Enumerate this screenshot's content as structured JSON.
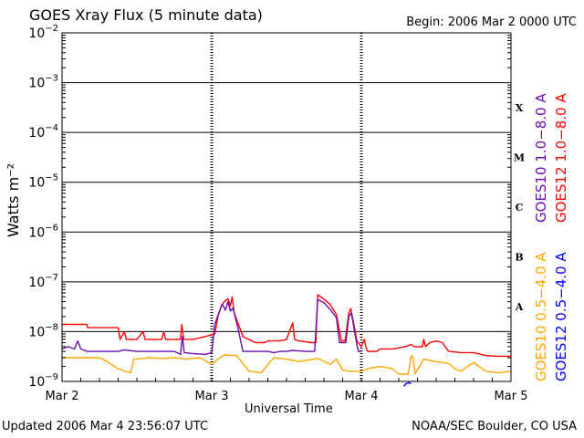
{
  "header": {
    "title": "GOES Xray Flux (5 minute data)",
    "begin": "Begin:  2006 Mar 2 0000 UTC"
  },
  "footer": {
    "updated": "Updated 2006 Mar  4 23:56:07 UTC",
    "credit": "NOAA/SEC Boulder, CO USA"
  },
  "colors": {
    "goes10_long": "#6a0dad",
    "goes12_long": "#ff0000",
    "goes10_short": "#ffa500",
    "goes12_short": "#0000ff"
  },
  "chart_data": {
    "type": "line",
    "xlabel": "Universal Time",
    "ylabel": "Watts m⁻²",
    "yscale": "log",
    "ylim": [
      1e-09,
      0.01
    ],
    "xlim": [
      0,
      72
    ],
    "x_unit": "hours since 2006 Mar 2 0000 UTC",
    "grid": true,
    "x_ticks": [
      {
        "x": 0,
        "label": "Mar 2"
      },
      {
        "x": 24,
        "label": "Mar 3"
      },
      {
        "x": 48,
        "label": "Mar 4"
      },
      {
        "x": 72,
        "label": "Mar 5"
      }
    ],
    "y_ticks": [
      {
        "exp": -2,
        "base": "10",
        "sup": "−2"
      },
      {
        "exp": -3,
        "base": "10",
        "sup": "−3"
      },
      {
        "exp": -4,
        "base": "10",
        "sup": "−4"
      },
      {
        "exp": -5,
        "base": "10",
        "sup": "−5"
      },
      {
        "exp": -6,
        "base": "10",
        "sup": "−6"
      },
      {
        "exp": -7,
        "base": "10",
        "sup": "−7"
      },
      {
        "exp": -8,
        "base": "10",
        "sup": "−8"
      },
      {
        "exp": -9,
        "base": "10",
        "sup": "−9"
      }
    ],
    "flare_classes": [
      {
        "label": "X",
        "exp": -4
      },
      {
        "label": "M",
        "exp": -5
      },
      {
        "label": "C",
        "exp": -6
      },
      {
        "label": "B",
        "exp": -7
      },
      {
        "label": "A",
        "exp": -8
      }
    ],
    "series": [
      {
        "name": "GOES12 1.0−8.0 A",
        "color": "#ff0000",
        "points": [
          [
            0,
            1.4e-08
          ],
          [
            4,
            1.4e-08
          ],
          [
            4.1,
            1.2e-08
          ],
          [
            9,
            1.2e-08
          ],
          [
            9.3,
            7e-09
          ],
          [
            10,
            1e-08
          ],
          [
            10.3,
            7e-09
          ],
          [
            12,
            7e-09
          ],
          [
            13,
            1e-08
          ],
          [
            13.3,
            7e-09
          ],
          [
            16,
            7e-09
          ],
          [
            16.3,
            1e-08
          ],
          [
            16.6,
            7e-09
          ],
          [
            19,
            7e-09
          ],
          [
            19.2,
            1.4e-08
          ],
          [
            19.5,
            7e-09
          ],
          [
            21,
            7e-09
          ],
          [
            23,
            8e-09
          ],
          [
            24.5,
            9e-09
          ],
          [
            25,
            2e-08
          ],
          [
            25.6,
            3.4e-08
          ],
          [
            26,
            4e-08
          ],
          [
            26.6,
            4.6e-08
          ],
          [
            27,
            3.3e-08
          ],
          [
            27.3,
            5e-08
          ],
          [
            27.6,
            2.4e-08
          ],
          [
            28.3,
            1.4e-08
          ],
          [
            29,
            8e-09
          ],
          [
            31,
            6e-09
          ],
          [
            32.5,
            6e-09
          ],
          [
            33,
            6.5e-09
          ],
          [
            35,
            6.5e-09
          ],
          [
            36,
            7e-09
          ],
          [
            37,
            1.5e-08
          ],
          [
            37.3,
            7e-09
          ],
          [
            38,
            6.5e-09
          ],
          [
            40,
            6e-09
          ],
          [
            40.7,
            6e-09
          ],
          [
            41,
            5.5e-08
          ],
          [
            42,
            4.5e-08
          ],
          [
            43,
            3.5e-08
          ],
          [
            44,
            2.2e-08
          ],
          [
            44.8,
            6.5e-09
          ],
          [
            45.4,
            6.5e-09
          ],
          [
            46,
            2.4e-08
          ],
          [
            46.3,
            2.9e-08
          ],
          [
            46.8,
            1.4e-08
          ],
          [
            47.3,
            6.5e-09
          ],
          [
            48,
            5e-09
          ],
          [
            48.5,
            7e-09
          ],
          [
            48.7,
            5e-09
          ],
          [
            49,
            4e-09
          ],
          [
            50.5,
            4e-09
          ],
          [
            51,
            4.5e-09
          ],
          [
            53,
            4.5e-09
          ],
          [
            55,
            5e-09
          ],
          [
            56,
            5.5e-09
          ],
          [
            56.5,
            5e-09
          ],
          [
            57.8,
            5e-09
          ],
          [
            58,
            7e-09
          ],
          [
            58.3,
            5e-09
          ],
          [
            59,
            6e-09
          ],
          [
            60,
            6.5e-09
          ],
          [
            61,
            6e-09
          ],
          [
            62,
            4e-09
          ],
          [
            64,
            3.8e-09
          ],
          [
            66,
            3.8e-09
          ],
          [
            68,
            3.3e-09
          ],
          [
            70,
            3.2e-09
          ],
          [
            72,
            3.2e-09
          ]
        ]
      },
      {
        "name": "GOES10 1.0−8.0 A",
        "color": "#6a0dad",
        "points": [
          [
            0,
            4.5e-09
          ],
          [
            1,
            5e-09
          ],
          [
            2,
            4.5e-09
          ],
          [
            2.5,
            6.5e-09
          ],
          [
            3,
            4.5e-09
          ],
          [
            4,
            4e-09
          ],
          [
            6,
            4e-09
          ],
          [
            8,
            4e-09
          ],
          [
            9,
            4e-09
          ],
          [
            10,
            4.3e-09
          ],
          [
            12,
            4e-09
          ],
          [
            14,
            4e-09
          ],
          [
            16,
            4e-09
          ],
          [
            18,
            4e-09
          ],
          [
            19,
            3.5e-09
          ],
          [
            19.3,
            8e-09
          ],
          [
            19.6,
            3.8e-09
          ],
          [
            21,
            3.6e-09
          ],
          [
            23,
            3.5e-09
          ],
          [
            24,
            3.8e-09
          ],
          [
            24.5,
            1.4e-08
          ],
          [
            25.2,
            2.5e-08
          ],
          [
            25.7,
            3.6e-08
          ],
          [
            26.2,
            2.7e-08
          ],
          [
            26.6,
            4e-08
          ],
          [
            27,
            2.6e-08
          ],
          [
            27.4,
            3e-08
          ],
          [
            28.2,
            1.2e-08
          ],
          [
            29,
            4e-09
          ],
          [
            31,
            4e-09
          ],
          [
            33,
            4e-09
          ],
          [
            34,
            3.8e-09
          ],
          [
            35,
            4e-09
          ],
          [
            36,
            4e-09
          ],
          [
            37,
            4.2e-09
          ],
          [
            39,
            4e-09
          ],
          [
            40.5,
            4e-09
          ],
          [
            41,
            4.4e-08
          ],
          [
            42,
            3.8e-08
          ],
          [
            43,
            2.8e-08
          ],
          [
            44,
            1.9e-08
          ],
          [
            44.5,
            6e-09
          ],
          [
            45.5,
            6e-09
          ],
          [
            46,
            2e-08
          ],
          [
            46.4,
            2.4e-08
          ],
          [
            46.9,
            1e-08
          ],
          [
            47.5,
            4e-09
          ],
          [
            48,
            4e-09
          ]
        ]
      },
      {
        "name": "GOES10 0.5−4.0 A",
        "color": "#ffa500",
        "points": [
          [
            0,
            3e-09
          ],
          [
            6,
            3e-09
          ],
          [
            7,
            2.6e-09
          ],
          [
            9,
            1.8e-09
          ],
          [
            10,
            1.6e-09
          ],
          [
            11,
            1.5e-09
          ],
          [
            11.5,
            2.8e-09
          ],
          [
            13,
            2.9e-09
          ],
          [
            14,
            3e-09
          ],
          [
            16,
            2.9e-09
          ],
          [
            18,
            3e-09
          ],
          [
            20,
            2.8e-09
          ],
          [
            22,
            3e-09
          ],
          [
            23,
            2.6e-09
          ],
          [
            24,
            2.2e-09
          ],
          [
            25,
            2.8e-09
          ],
          [
            26,
            3.4e-09
          ],
          [
            28,
            3.3e-09
          ],
          [
            30,
            1.6e-09
          ],
          [
            32,
            1.5e-09
          ],
          [
            33,
            2.2e-09
          ],
          [
            34,
            3e-09
          ],
          [
            36,
            2.8e-09
          ],
          [
            38,
            2.5e-09
          ],
          [
            41,
            2.9e-09
          ],
          [
            43,
            2.2e-09
          ],
          [
            44,
            2.8e-09
          ],
          [
            45,
            1.7e-09
          ],
          [
            46,
            1.6e-09
          ],
          [
            48,
            1.6e-09
          ],
          [
            49,
            1.8e-09
          ],
          [
            51,
            2e-09
          ],
          [
            53,
            1.8e-09
          ],
          [
            54,
            1.4e-09
          ],
          [
            55.5,
            1.4e-09
          ],
          [
            56,
            3.3e-09
          ],
          [
            56.3,
            3e-09
          ],
          [
            56.6,
            1.4e-09
          ],
          [
            58,
            2.8e-09
          ],
          [
            60,
            2.5e-09
          ],
          [
            62,
            2.3e-09
          ],
          [
            63,
            1.8e-09
          ],
          [
            64,
            1.6e-09
          ],
          [
            65,
            2e-09
          ],
          [
            66,
            2.4e-09
          ],
          [
            68,
            1.6e-09
          ],
          [
            70,
            1.5e-09
          ],
          [
            72,
            1.6e-09
          ]
        ]
      },
      {
        "name": "GOES12 0.5−4.0 A",
        "color": "#0000ff",
        "points": [
          [
            54.8,
            8e-10
          ],
          [
            55.2,
            9e-10
          ],
          [
            55.6,
            9.5e-10
          ],
          [
            56,
            9e-10
          ]
        ]
      }
    ]
  }
}
